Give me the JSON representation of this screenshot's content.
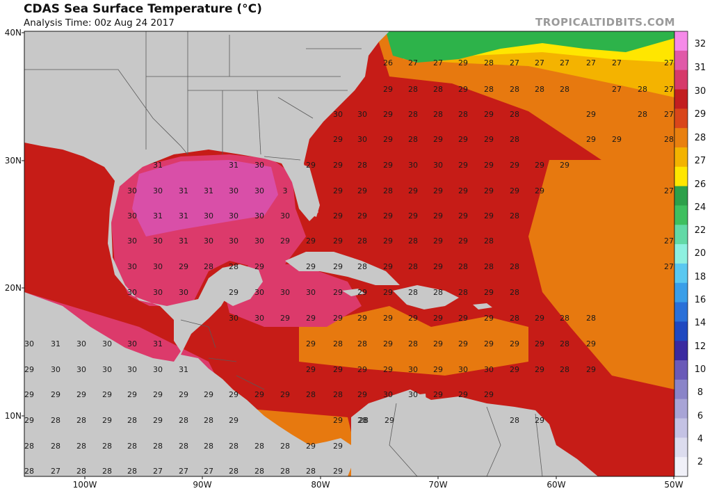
{
  "header": {
    "title": "CDAS Sea Surface Temperature (°C)",
    "subtitle": "Analysis Time: 00z Aug 24 2017",
    "credit": "TROPICALTIDBITS.COM"
  },
  "colors": {
    "land": "#c8c8c8",
    "borders": "#5a5a5a",
    "t24": "#2db34a",
    "t26": "#ffe600",
    "t27": "#f4b300",
    "t28": "#e7790f",
    "t29": "#c61c17",
    "t30": "#dc3a6b",
    "t31": "#d94fa8"
  },
  "map_data": {
    "lat_labels": [
      "40N",
      "30N",
      "20N",
      "10N"
    ],
    "lon_labels": [
      "100W",
      "90W",
      "80W",
      "70W",
      "60W",
      "50W"
    ],
    "colorbar_labels": [
      "32",
      "31",
      "30",
      "29",
      "28",
      "27",
      "26",
      "24",
      "22",
      "20",
      "18",
      "16",
      "14",
      "12",
      "10",
      "8",
      "6",
      "4",
      "2"
    ],
    "colorbar_colors": [
      "#f58ae8",
      "#e05aa8",
      "#d63a6a",
      "#c21e20",
      "#d9461a",
      "#e9800f",
      "#f3b300",
      "#ffe600",
      "#2da04a",
      "#3fbf5f",
      "#63d9a6",
      "#8ef0e0",
      "#5ac8f0",
      "#3a9ee8",
      "#2a70d8",
      "#1f48c0",
      "#3a2aa0",
      "#6a5ab8",
      "#8a84c8",
      "#a8a4d6",
      "#c4c2e4",
      "#dcdcee",
      "#f0f0f8"
    ],
    "rows": [
      [
        "26",
        "27",
        "27",
        "29",
        "28",
        "27",
        "27",
        "27",
        "27",
        "27",
        "27"
      ],
      [
        "29",
        "28",
        "28",
        "29",
        "28",
        "28",
        "28",
        "28",
        "27",
        "28",
        "27"
      ],
      [
        "30",
        "30",
        "29",
        "28",
        "28",
        "28",
        "29",
        "28",
        "29",
        "28",
        "27"
      ],
      [
        "29",
        "30",
        "29",
        "28",
        "29",
        "29",
        "29",
        "28",
        "29",
        "29",
        "28"
      ],
      [
        "31",
        "31",
        "30",
        "29",
        "29",
        "28",
        "29",
        "30",
        "30",
        "29",
        "29",
        "29",
        "29",
        "29"
      ],
      [
        "30",
        "30",
        "31",
        "31",
        "30",
        "30",
        "3",
        "29",
        "29",
        "28",
        "29",
        "29",
        "29",
        "29",
        "29",
        "29",
        "27"
      ],
      [
        "30",
        "31",
        "31",
        "30",
        "30",
        "30",
        "30",
        "29",
        "29",
        "29",
        "29",
        "29",
        "29",
        "29",
        "28"
      ],
      [
        "30",
        "30",
        "31",
        "30",
        "30",
        "30",
        "29",
        "29",
        "29",
        "28",
        "29",
        "28",
        "29",
        "29",
        "28",
        "27"
      ],
      [
        "30",
        "30",
        "29",
        "28",
        "28",
        "29",
        "29",
        "29",
        "28",
        "29",
        "28",
        "29",
        "28",
        "28",
        "28",
        "27"
      ],
      [
        "30",
        "30",
        "30",
        "29",
        "30",
        "30",
        "30",
        "29",
        "29",
        "29",
        "28",
        "28",
        "28",
        "29",
        "28"
      ],
      [
        "30",
        "30",
        "29",
        "29",
        "29",
        "29",
        "29",
        "29",
        "29",
        "29",
        "29",
        "28",
        "29",
        "28",
        "28"
      ],
      [
        "30",
        "31",
        "30",
        "30",
        "30",
        "31",
        "29",
        "28",
        "28",
        "29",
        "28",
        "29",
        "29",
        "29",
        "29",
        "29",
        "28",
        "29"
      ],
      [
        "29",
        "30",
        "30",
        "30",
        "30",
        "30",
        "31",
        "29",
        "29",
        "29",
        "29",
        "30",
        "29",
        "30",
        "30",
        "29",
        "29",
        "28",
        "29"
      ],
      [
        "29",
        "29",
        "29",
        "29",
        "29",
        "29",
        "29",
        "29",
        "29",
        "29",
        "29",
        "28",
        "28",
        "29",
        "30",
        "30",
        "29",
        "29",
        "29"
      ],
      [
        "29",
        "28",
        "28",
        "29",
        "28",
        "29",
        "28",
        "28",
        "29",
        "29",
        "28",
        "28",
        "29",
        "28",
        "29"
      ],
      [
        "28",
        "28",
        "28",
        "28",
        "28",
        "28",
        "28",
        "28",
        "28",
        "28",
        "28",
        "29",
        "29"
      ],
      [
        "28",
        "27",
        "28",
        "28",
        "28",
        "27",
        "27",
        "27",
        "28",
        "28",
        "28",
        "28",
        "29"
      ]
    ]
  }
}
